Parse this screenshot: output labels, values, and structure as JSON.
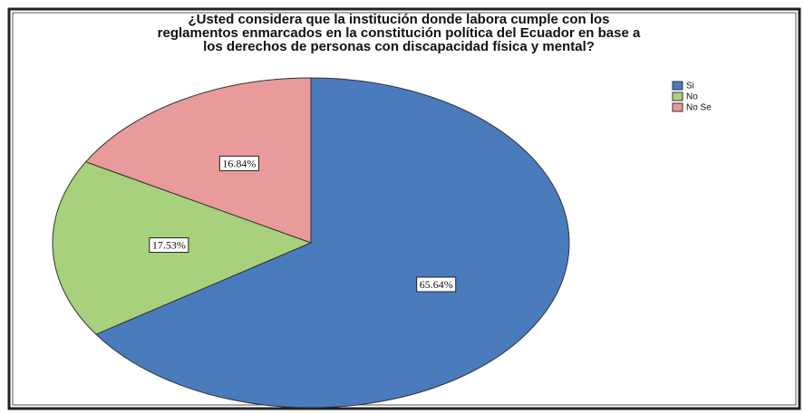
{
  "chart_data": {
    "type": "pie",
    "title": [
      "¿Usted considera que la institución donde labora cumple con los",
      "reglamentos enmarcados en la constitución política del Ecuador en base a",
      "los derechos de personas con discapacidad física y mental?"
    ],
    "categories": [
      "Si",
      "No",
      "No Se"
    ],
    "values": [
      65.64,
      17.53,
      16.84
    ],
    "value_labels": [
      "65.64%",
      "17.53%",
      "16.84%"
    ],
    "colors": [
      "#4a7bbd",
      "#a7d17c",
      "#e99a9b"
    ],
    "legend": "top-right"
  }
}
